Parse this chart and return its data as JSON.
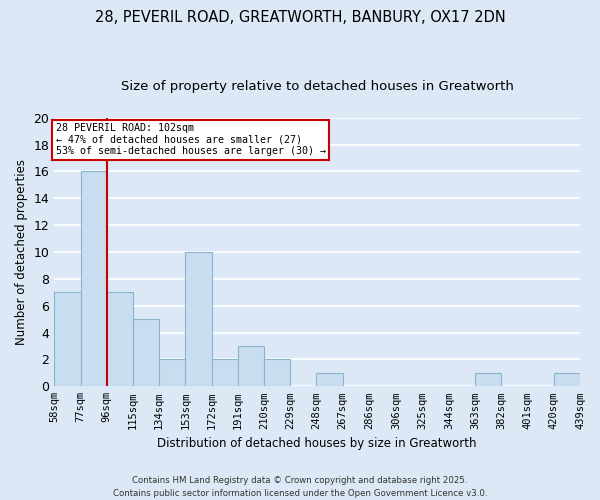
{
  "title": "28, PEVERIL ROAD, GREATWORTH, BANBURY, OX17 2DN",
  "subtitle": "Size of property relative to detached houses in Greatworth",
  "xlabel": "Distribution of detached houses by size in Greatworth",
  "ylabel": "Number of detached properties",
  "bar_edges": [
    58,
    77,
    96,
    115,
    134,
    153,
    172,
    191,
    210,
    229,
    248,
    267,
    286,
    306,
    325,
    344,
    363,
    382,
    401,
    420,
    439
  ],
  "bar_heights": [
    7,
    16,
    7,
    5,
    2,
    10,
    2,
    3,
    2,
    0,
    1,
    0,
    0,
    0,
    0,
    0,
    1,
    0,
    0,
    1,
    0
  ],
  "bar_color": "#c8ddf0",
  "bar_edge_color": "#8ab4cc",
  "property_line_x": 96,
  "annotation_line1": "28 PEVERIL ROAD: 102sqm",
  "annotation_line2": "← 47% of detached houses are smaller (27)",
  "annotation_line3": "53% of semi-detached houses are larger (30) →",
  "annotation_box_color": "white",
  "annotation_border_color": "#cc0000",
  "vline_color": "#cc0000",
  "ylim": [
    0,
    20
  ],
  "yticks": [
    0,
    2,
    4,
    6,
    8,
    10,
    12,
    14,
    16,
    18,
    20
  ],
  "background_color": "#dce8f5",
  "grid_color": "white",
  "title_fontsize": 10.5,
  "subtitle_fontsize": 9.5,
  "axis_fontsize": 8.5,
  "tick_label_fontsize": 7.5,
  "footer_line1": "Contains HM Land Registry data © Crown copyright and database right 2025.",
  "footer_line2": "Contains public sector information licensed under the Open Government Licence v3.0."
}
